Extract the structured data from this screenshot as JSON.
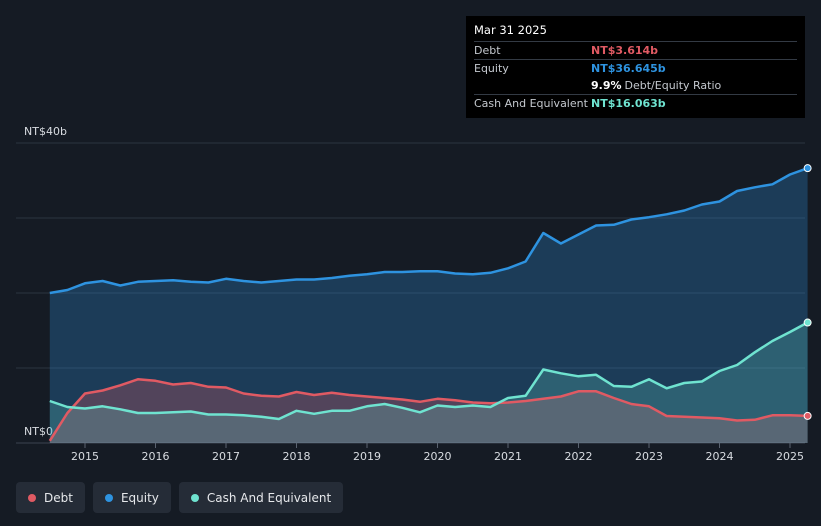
{
  "tooltip": {
    "date": "Mar 31 2025",
    "debt_label": "Debt",
    "debt_value": "NT$3.614b",
    "equity_label": "Equity",
    "equity_value": "NT$36.645b",
    "ratio_value": "9.9%",
    "ratio_label": "Debt/Equity Ratio",
    "cash_label": "Cash And Equivalent",
    "cash_value": "NT$16.063b"
  },
  "legend": {
    "debt": "Debt",
    "equity": "Equity",
    "cash": "Cash And Equivalent"
  },
  "colors": {
    "debt": "#e05a63",
    "equity": "#2e93e0",
    "cash": "#6fe3d0"
  },
  "chart_data": {
    "type": "area",
    "y_unit": "NT$ billions",
    "ylim": [
      0,
      40
    ],
    "y_tick_labels": [
      {
        "value": 40,
        "label": "NT$40b"
      },
      {
        "value": 0,
        "label": "NT$0"
      }
    ],
    "x_ticks": [
      "2015",
      "2016",
      "2017",
      "2018",
      "2019",
      "2020",
      "2021",
      "2022",
      "2023",
      "2024",
      "2025"
    ],
    "series": [
      {
        "name": "Equity",
        "points": [
          [
            2014.5,
            20.0
          ],
          [
            2014.75,
            20.4
          ],
          [
            2015.0,
            21.3
          ],
          [
            2015.25,
            21.6
          ],
          [
            2015.5,
            21.0
          ],
          [
            2015.75,
            21.5
          ],
          [
            2016.0,
            21.6
          ],
          [
            2016.25,
            21.7
          ],
          [
            2016.5,
            21.5
          ],
          [
            2016.75,
            21.4
          ],
          [
            2017.0,
            21.9
          ],
          [
            2017.25,
            21.6
          ],
          [
            2017.5,
            21.4
          ],
          [
            2017.75,
            21.6
          ],
          [
            2018.0,
            21.8
          ],
          [
            2018.25,
            21.8
          ],
          [
            2018.5,
            22.0
          ],
          [
            2018.75,
            22.3
          ],
          [
            2019.0,
            22.5
          ],
          [
            2019.25,
            22.8
          ],
          [
            2019.5,
            22.8
          ],
          [
            2019.75,
            22.9
          ],
          [
            2020.0,
            22.9
          ],
          [
            2020.25,
            22.6
          ],
          [
            2020.5,
            22.5
          ],
          [
            2020.75,
            22.7
          ],
          [
            2021.0,
            23.3
          ],
          [
            2021.25,
            24.2
          ],
          [
            2021.5,
            28.0
          ],
          [
            2021.75,
            26.6
          ],
          [
            2022.0,
            27.8
          ],
          [
            2022.25,
            29.0
          ],
          [
            2022.5,
            29.1
          ],
          [
            2022.75,
            29.8
          ],
          [
            2023.0,
            30.1
          ],
          [
            2023.25,
            30.5
          ],
          [
            2023.5,
            31.0
          ],
          [
            2023.75,
            31.8
          ],
          [
            2024.0,
            32.2
          ],
          [
            2024.25,
            33.6
          ],
          [
            2024.5,
            34.1
          ],
          [
            2024.75,
            34.5
          ],
          [
            2025.0,
            35.8
          ],
          [
            2025.25,
            36.645
          ]
        ]
      },
      {
        "name": "Debt",
        "points": [
          [
            2014.5,
            0.3
          ],
          [
            2014.75,
            4.0
          ],
          [
            2015.0,
            6.6
          ],
          [
            2015.25,
            7.0
          ],
          [
            2015.5,
            7.7
          ],
          [
            2015.75,
            8.5
          ],
          [
            2016.0,
            8.3
          ],
          [
            2016.25,
            7.8
          ],
          [
            2016.5,
            8.0
          ],
          [
            2016.75,
            7.5
          ],
          [
            2017.0,
            7.4
          ],
          [
            2017.25,
            6.6
          ],
          [
            2017.5,
            6.3
          ],
          [
            2017.75,
            6.2
          ],
          [
            2018.0,
            6.8
          ],
          [
            2018.25,
            6.4
          ],
          [
            2018.5,
            6.7
          ],
          [
            2018.75,
            6.4
          ],
          [
            2019.0,
            6.2
          ],
          [
            2019.25,
            6.0
          ],
          [
            2019.5,
            5.8
          ],
          [
            2019.75,
            5.5
          ],
          [
            2020.0,
            5.9
          ],
          [
            2020.25,
            5.7
          ],
          [
            2020.5,
            5.4
          ],
          [
            2020.75,
            5.3
          ],
          [
            2021.0,
            5.4
          ],
          [
            2021.25,
            5.6
          ],
          [
            2021.5,
            5.9
          ],
          [
            2021.75,
            6.2
          ],
          [
            2022.0,
            6.9
          ],
          [
            2022.25,
            6.9
          ],
          [
            2022.5,
            6.0
          ],
          [
            2022.75,
            5.2
          ],
          [
            2023.0,
            4.9
          ],
          [
            2023.25,
            3.6
          ],
          [
            2023.5,
            3.5
          ],
          [
            2023.75,
            3.4
          ],
          [
            2024.0,
            3.3
          ],
          [
            2024.25,
            3.0
          ],
          [
            2024.5,
            3.1
          ],
          [
            2024.75,
            3.7
          ],
          [
            2025.0,
            3.7
          ],
          [
            2025.25,
            3.614
          ]
        ]
      },
      {
        "name": "Cash And Equivalent",
        "points": [
          [
            2014.5,
            5.6
          ],
          [
            2014.75,
            4.8
          ],
          [
            2015.0,
            4.6
          ],
          [
            2015.25,
            4.9
          ],
          [
            2015.5,
            4.5
          ],
          [
            2015.75,
            4.0
          ],
          [
            2016.0,
            4.0
          ],
          [
            2016.25,
            4.1
          ],
          [
            2016.5,
            4.2
          ],
          [
            2016.75,
            3.8
          ],
          [
            2017.0,
            3.8
          ],
          [
            2017.25,
            3.7
          ],
          [
            2017.5,
            3.5
          ],
          [
            2017.75,
            3.2
          ],
          [
            2018.0,
            4.3
          ],
          [
            2018.25,
            3.9
          ],
          [
            2018.5,
            4.3
          ],
          [
            2018.75,
            4.3
          ],
          [
            2019.0,
            4.9
          ],
          [
            2019.25,
            5.2
          ],
          [
            2019.5,
            4.7
          ],
          [
            2019.75,
            4.1
          ],
          [
            2020.0,
            5.0
          ],
          [
            2020.25,
            4.8
          ],
          [
            2020.5,
            5.0
          ],
          [
            2020.75,
            4.8
          ],
          [
            2021.0,
            6.0
          ],
          [
            2021.25,
            6.3
          ],
          [
            2021.5,
            9.8
          ],
          [
            2021.75,
            9.3
          ],
          [
            2022.0,
            8.9
          ],
          [
            2022.25,
            9.1
          ],
          [
            2022.5,
            7.6
          ],
          [
            2022.75,
            7.5
          ],
          [
            2023.0,
            8.5
          ],
          [
            2023.25,
            7.3
          ],
          [
            2023.5,
            8.0
          ],
          [
            2023.75,
            8.2
          ],
          [
            2024.0,
            9.6
          ],
          [
            2024.25,
            10.4
          ],
          [
            2024.5,
            12.1
          ],
          [
            2024.75,
            13.6
          ],
          [
            2025.0,
            14.8
          ],
          [
            2025.25,
            16.063
          ]
        ]
      }
    ]
  }
}
